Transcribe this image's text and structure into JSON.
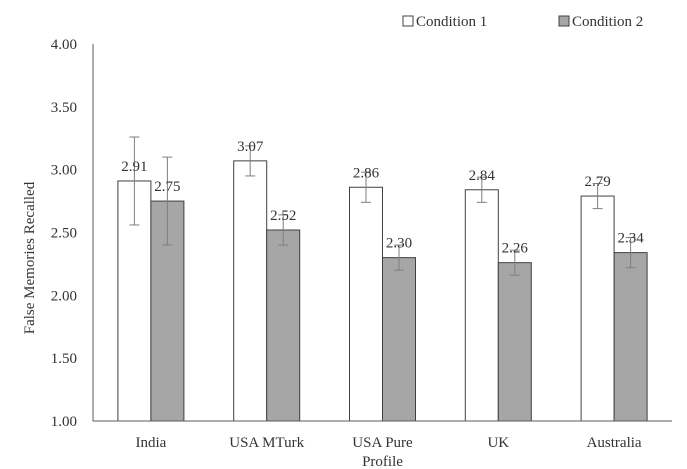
{
  "chart_data": {
    "type": "bar",
    "title": "",
    "xlabel": "",
    "ylabel": "False Memories Recalled",
    "ylim": [
      1.0,
      4.0
    ],
    "yticks": [
      "1.00",
      "1.50",
      "2.00",
      "2.50",
      "3.00",
      "3.50",
      "4.00"
    ],
    "ytick_values": [
      1.0,
      1.5,
      2.0,
      2.5,
      3.0,
      3.5,
      4.0
    ],
    "categories": [
      "India",
      "USA MTurk",
      "USA Pure Profile",
      "UK",
      "Australia"
    ],
    "category_lines": [
      [
        "India"
      ],
      [
        "USA MTurk"
      ],
      [
        "USA Pure",
        "Profile"
      ],
      [
        "UK"
      ],
      [
        "Australia"
      ]
    ],
    "legend_position": "top-right",
    "grid": false,
    "series": [
      {
        "name": "Condition 1",
        "color": "#ffffff",
        "values": [
          2.91,
          3.07,
          2.86,
          2.84,
          2.79
        ],
        "labels": [
          "2.91",
          "3.07",
          "2.86",
          "2.84",
          "2.79"
        ],
        "error": [
          0.35,
          0.12,
          0.12,
          0.1,
          0.1
        ]
      },
      {
        "name": "Condition 2",
        "color": "#a6a6a6",
        "values": [
          2.75,
          2.52,
          2.3,
          2.26,
          2.34
        ],
        "labels": [
          "2.75",
          "2.52",
          "2.30",
          "2.26",
          "2.34"
        ],
        "error": [
          0.35,
          0.12,
          0.1,
          0.1,
          0.12
        ]
      }
    ]
  }
}
